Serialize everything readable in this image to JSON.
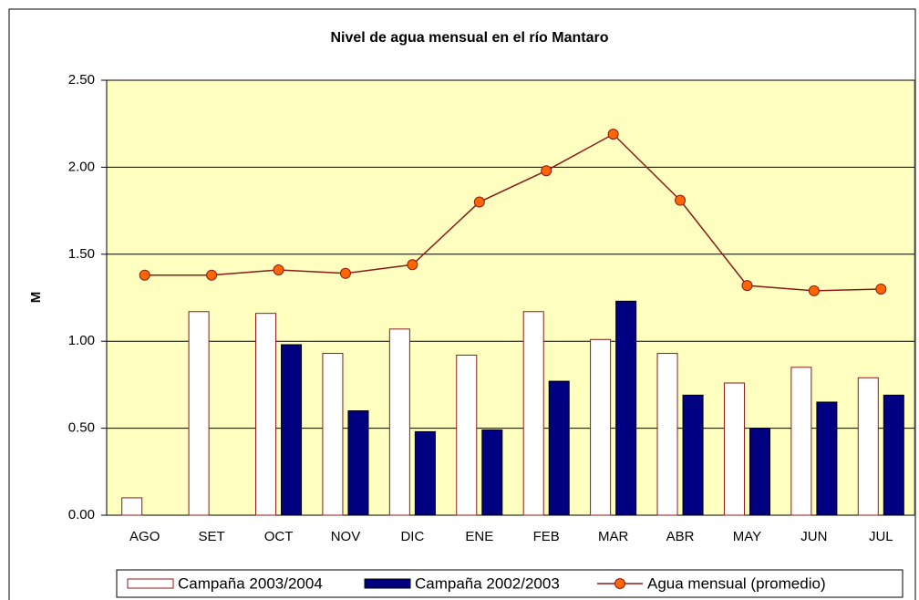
{
  "chart_data": {
    "type": "bar-line",
    "title": "Nivel de agua mensual en el río Mantaro",
    "y_label": "M",
    "categories": [
      "AGO",
      "SET",
      "OCT",
      "NOV",
      "DIC",
      "ENE",
      "FEB",
      "MAR",
      "ABR",
      "MAY",
      "JUN",
      "JUL"
    ],
    "series": [
      {
        "name": "Campaña 2003/2004",
        "type": "bar",
        "color": "#ffffff",
        "values": [
          0.1,
          1.17,
          1.16,
          0.93,
          1.07,
          0.92,
          1.17,
          1.01,
          0.93,
          0.76,
          0.85,
          0.79
        ]
      },
      {
        "name": "Campaña 2002/2003",
        "type": "bar",
        "color": "#000080",
        "values": [
          null,
          null,
          0.98,
          0.6,
          0.48,
          0.49,
          0.77,
          1.23,
          0.69,
          0.5,
          0.65,
          0.69
        ]
      },
      {
        "name": "Agua mensual (promedio)",
        "type": "line",
        "color": "#8b1a1a",
        "values": [
          1.38,
          1.38,
          1.41,
          1.39,
          1.44,
          1.8,
          1.98,
          2.19,
          1.81,
          1.32,
          1.29,
          1.3
        ]
      }
    ],
    "ylim": [
      0,
      2.5
    ],
    "yticks": [
      {
        "value": 0,
        "label": "0.00"
      },
      {
        "value": 0.5,
        "label": "0.50"
      },
      {
        "value": 1,
        "label": "1.00"
      },
      {
        "value": 1.5,
        "label": "1.50"
      },
      {
        "value": 2,
        "label": "2.00"
      },
      {
        "value": 2.5,
        "label": "2.50"
      }
    ],
    "grid": true
  }
}
